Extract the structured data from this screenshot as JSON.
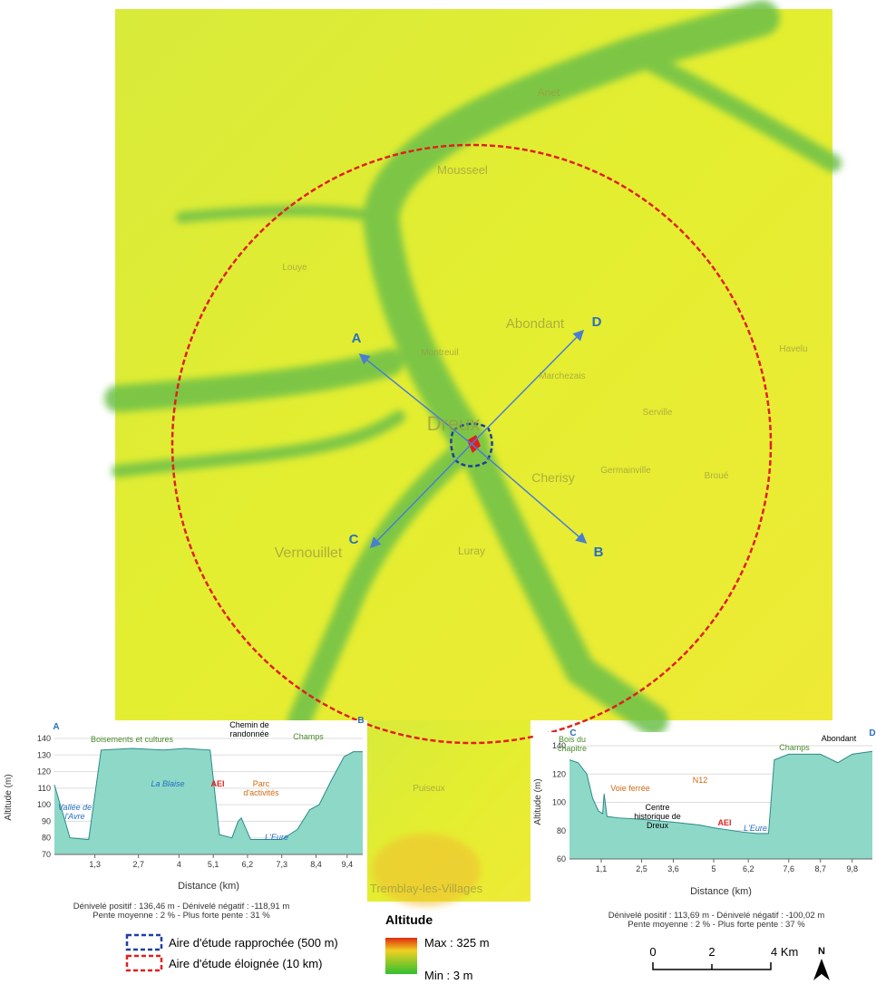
{
  "map": {
    "points": [
      {
        "label": "A"
      },
      {
        "label": "B"
      },
      {
        "label": "C"
      },
      {
        "label": "D"
      }
    ],
    "places": [
      "Dreux",
      "Vernouillet",
      "Abondant",
      "Cherisy",
      "Luray",
      "Mousseel",
      "Montreuil",
      "Marchezais",
      "Germainville",
      "Serville",
      "Havelu",
      "Broué",
      "Tremblay-les-Villages",
      "Anet",
      "Louye",
      "Puiseux"
    ]
  },
  "chart_data": [
    {
      "type": "area",
      "start_label": "A",
      "end_label": "B",
      "color": "#8ed8c8",
      "line_color": "#2a8a8a",
      "y_label": "Altitude (m)",
      "x_label": "Distance (km)",
      "x": [
        0,
        0.5,
        1.1,
        1.5,
        2.5,
        3.5,
        4.2,
        5.0,
        5.3,
        5.7,
        5.9,
        6.0,
        6.3,
        7.3,
        7.8,
        8.2,
        8.5,
        8.9,
        9.3,
        9.6,
        9.9
      ],
      "values": [
        112,
        80,
        79,
        133,
        134,
        133,
        134,
        133,
        82,
        80,
        90,
        92,
        79,
        79,
        85,
        97,
        100,
        115,
        129,
        132,
        132
      ],
      "xlim": [
        0,
        9.9
      ],
      "ylim": [
        70,
        140
      ],
      "xticks": [
        {
          "value": 1.3,
          "label": "1,3"
        },
        {
          "value": 2.7,
          "label": "2,7"
        },
        4,
        {
          "value": 5.1,
          "label": "5,1"
        },
        {
          "value": 6.2,
          "label": "6,2"
        },
        {
          "value": 7.3,
          "label": "7,3"
        },
        {
          "value": 8.4,
          "label": "8,4"
        },
        {
          "value": 9.4,
          "label": "9,4"
        }
      ],
      "yticks": [
        70,
        80,
        90,
        100,
        110,
        120,
        130,
        140
      ],
      "annotations": [
        {
          "text": "Boisements et cultures",
          "color": "#4a8a2a"
        },
        {
          "text": "Chemin de randonnée",
          "color": "#000"
        },
        {
          "text": "Champs",
          "color": "#4a8a2a"
        },
        {
          "text": "La Blaise",
          "color": "#1f6fc0"
        },
        {
          "text": "AEI",
          "color": "#e0201e"
        },
        {
          "text": "Parc d'activités",
          "color": "#d06a10"
        },
        {
          "text": "Vallée de l'Avre",
          "color": "#1f6fc0"
        },
        {
          "text": "L'Eure",
          "color": "#1f6fc0"
        }
      ],
      "stats": [
        "Dénivelé positif : 136,46 m - Dénivelé négatif : -118,91 m",
        "Pente moyenne : 2 % - Plus forte pente : 31 %"
      ]
    },
    {
      "type": "area",
      "start_label": "C",
      "end_label": "D",
      "color": "#8ed8c8",
      "line_color": "#2a8a8a",
      "y_label": "Altitude (m)",
      "x_label": "Distance (km)",
      "x": [
        0,
        0.3,
        0.6,
        0.8,
        1.0,
        1.15,
        1.2,
        1.3,
        1.7,
        2.5,
        3.6,
        4.5,
        5,
        6,
        6.5,
        6.9,
        7.1,
        7.6,
        8.7,
        9.0,
        9.3,
        9.8,
        10.5
      ],
      "values": [
        130,
        128,
        120,
        103,
        94,
        92,
        106,
        90,
        89,
        88,
        86,
        84,
        82,
        79,
        78,
        78,
        130,
        134,
        134,
        131,
        128,
        134,
        136
      ],
      "xlim": [
        0,
        10.5
      ],
      "ylim": [
        60,
        140
      ],
      "xticks": [
        {
          "value": 1.1,
          "label": "1,1"
        },
        {
          "value": 2.5,
          "label": "2,5"
        },
        {
          "value": 3.6,
          "label": "3,6"
        },
        5,
        {
          "value": 6.2,
          "label": "6,2"
        },
        {
          "value": 7.6,
          "label": "7,6"
        },
        {
          "value": 8.7,
          "label": "8,7"
        },
        {
          "value": 9.8,
          "label": "9,8"
        }
      ],
      "yticks": [
        60,
        80,
        100,
        120,
        140
      ],
      "annotations": [
        {
          "text": "Bois du chapitre",
          "color": "#4a8a2a"
        },
        {
          "text": "Voie ferrée",
          "color": "#d06a10"
        },
        {
          "text": "Centre historique de Dreux",
          "color": "#000"
        },
        {
          "text": "N12",
          "color": "#d06a10"
        },
        {
          "text": "AEI",
          "color": "#e0201e"
        },
        {
          "text": "L'Eure",
          "color": "#1f6fc0"
        },
        {
          "text": "Champs",
          "color": "#4a8a2a"
        },
        {
          "text": "Abondant",
          "color": "#000"
        }
      ],
      "stats": [
        "Dénivelé positif : 113,69 m - Dénivelé négatif : -100,02 m",
        "Pente moyenne : 2 % - Plus forte pente : 37 %"
      ]
    }
  ],
  "legend": {
    "areas": [
      {
        "label": "Aire d'étude rapprochée (500 m)",
        "color": "#1f3fa0"
      },
      {
        "label": "Aire d'étude éloignée (10 km)",
        "color": "#e0201e"
      }
    ],
    "altitude": {
      "title": "Altitude",
      "max": "Max : 325 m",
      "min": "Min : 3 m"
    }
  },
  "scale": {
    "labels": [
      "0",
      "2",
      "4 Km"
    ],
    "north": "N"
  }
}
